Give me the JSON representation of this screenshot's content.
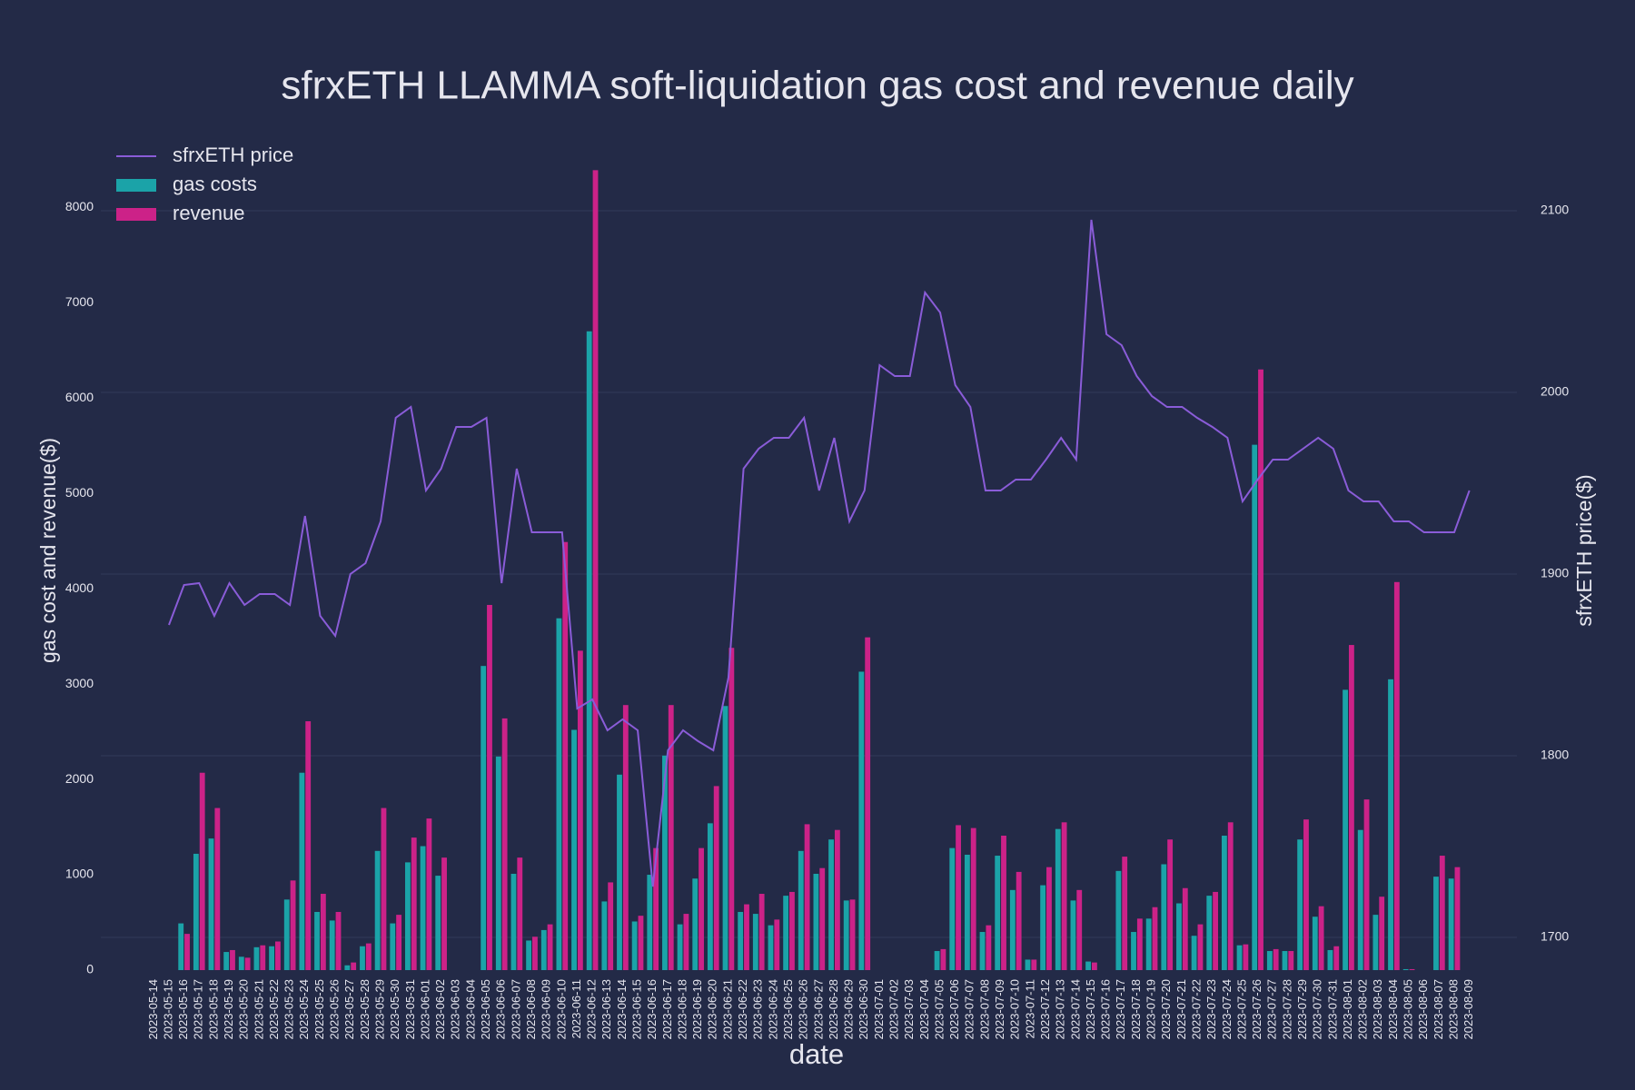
{
  "chart_data": {
    "type": "bar",
    "title": "sfrxETH LLAMMA soft-liquidation gas cost and revenue daily",
    "x_label": "date",
    "y_label": "gas cost and revenue($)",
    "y2_label": "sfrxETH price($)",
    "categories": [
      "2023-05-14",
      "2023-05-15",
      "2023-05-16",
      "2023-05-17",
      "2023-05-18",
      "2023-05-19",
      "2023-05-20",
      "2023-05-21",
      "2023-05-22",
      "2023-05-23",
      "2023-05-24",
      "2023-05-25",
      "2023-05-26",
      "2023-05-27",
      "2023-05-28",
      "2023-05-29",
      "2023-05-30",
      "2023-05-31",
      "2023-06-01",
      "2023-06-02",
      "2023-06-03",
      "2023-06-04",
      "2023-06-05",
      "2023-06-06",
      "2023-06-07",
      "2023-06-08",
      "2023-06-09",
      "2023-06-10",
      "2023-06-11",
      "2023-06-12",
      "2023-06-13",
      "2023-06-14",
      "2023-06-15",
      "2023-06-16",
      "2023-06-17",
      "2023-06-18",
      "2023-06-19",
      "2023-06-20",
      "2023-06-21",
      "2023-06-22",
      "2023-06-23",
      "2023-06-24",
      "2023-06-25",
      "2023-06-26",
      "2023-06-27",
      "2023-06-28",
      "2023-06-29",
      "2023-06-30",
      "2023-07-01",
      "2023-07-02",
      "2023-07-03",
      "2023-07-04",
      "2023-07-05",
      "2023-07-06",
      "2023-07-07",
      "2023-07-08",
      "2023-07-09",
      "2023-07-10",
      "2023-07-11",
      "2023-07-12",
      "2023-07-13",
      "2023-07-14",
      "2023-07-15",
      "2023-07-16",
      "2023-07-17",
      "2023-07-18",
      "2023-07-19",
      "2023-07-20",
      "2023-07-21",
      "2023-07-22",
      "2023-07-23",
      "2023-07-24",
      "2023-07-25",
      "2023-07-26",
      "2023-07-27",
      "2023-07-28",
      "2023-07-29",
      "2023-07-30",
      "2023-07-31",
      "2023-08-01",
      "2023-08-02",
      "2023-08-03",
      "2023-08-04",
      "2023-08-05",
      "2023-08-06",
      "2023-08-07",
      "2023-08-08",
      "2023-08-09"
    ],
    "series": [
      {
        "name": "sfrxETH price",
        "type": "line",
        "axis": "y2",
        "color": "#8a5cd8",
        "values": [
          null,
          1872,
          1894,
          1895,
          1877,
          1895,
          1883,
          1889,
          1889,
          1883,
          1932,
          1877,
          1866,
          1900,
          1906,
          1929,
          1986,
          1992,
          1946,
          1958,
          1981,
          1981,
          1986,
          1895,
          1958,
          1923,
          1923,
          1923,
          1826,
          1831,
          1814,
          1820,
          1814,
          1728,
          1803,
          1814,
          1808,
          1803,
          1843,
          1958,
          1969,
          1975,
          1975,
          1986,
          1946,
          1975,
          1929,
          1946,
          2015,
          2009,
          2009,
          2055,
          2044,
          2004,
          1992,
          1946,
          1946,
          1952,
          1952,
          1963,
          1975,
          1963,
          2095,
          2032,
          2026,
          2009,
          1998,
          1992,
          1992,
          1986,
          1981,
          1975,
          1940,
          1952,
          1963,
          1963,
          1969,
          1975,
          1969,
          1946,
          1940,
          1940,
          1929,
          1929,
          1923,
          1923,
          1923,
          1946
        ]
      },
      {
        "name": "gas costs",
        "type": "bar",
        "color": "#1ba3a8",
        "values": [
          0,
          0,
          490,
          1220,
          1380,
          190,
          140,
          240,
          250,
          740,
          2070,
          610,
          520,
          50,
          250,
          1250,
          490,
          1130,
          1300,
          990,
          0,
          0,
          3190,
          2240,
          1010,
          310,
          420,
          3690,
          2520,
          6700,
          720,
          2050,
          510,
          1000,
          2250,
          480,
          960,
          1540,
          2770,
          610,
          590,
          470,
          780,
          1250,
          1010,
          1370,
          730,
          3130,
          0,
          0,
          0,
          0,
          200,
          1280,
          1210,
          400,
          1200,
          840,
          110,
          890,
          1480,
          730,
          90,
          0,
          1040,
          400,
          540,
          1110,
          700,
          360,
          780,
          1410,
          260,
          5510,
          200,
          200,
          1370,
          560,
          210,
          2940,
          1470,
          580,
          3050,
          10,
          0,
          980,
          960,
          0
        ]
      },
      {
        "name": "revenue",
        "type": "bar",
        "color": "#cc2288",
        "values": [
          0,
          0,
          380,
          2070,
          1700,
          210,
          130,
          260,
          300,
          940,
          2610,
          800,
          610,
          80,
          280,
          1700,
          580,
          1390,
          1590,
          1180,
          0,
          0,
          3830,
          2640,
          1180,
          350,
          480,
          4490,
          3350,
          8390,
          920,
          2780,
          570,
          1280,
          2780,
          590,
          1280,
          1930,
          3380,
          690,
          800,
          530,
          820,
          1530,
          1070,
          1470,
          740,
          3490,
          0,
          0,
          0,
          0,
          220,
          1520,
          1490,
          470,
          1410,
          1030,
          110,
          1080,
          1550,
          840,
          80,
          0,
          1190,
          540,
          660,
          1370,
          860,
          480,
          820,
          1550,
          270,
          6300,
          220,
          200,
          1580,
          670,
          250,
          3410,
          1790,
          770,
          4070,
          10,
          0,
          1200,
          1080,
          0
        ]
      }
    ],
    "ylim": [
      0,
      8460
    ],
    "yticks": [
      0,
      1000,
      2000,
      3000,
      4000,
      5000,
      6000,
      7000,
      8000
    ],
    "y2lim": [
      1682,
      2126
    ],
    "y2ticks": [
      1700,
      1800,
      1900,
      2000,
      2100
    ],
    "grid": "y2",
    "legend": "top-left"
  }
}
